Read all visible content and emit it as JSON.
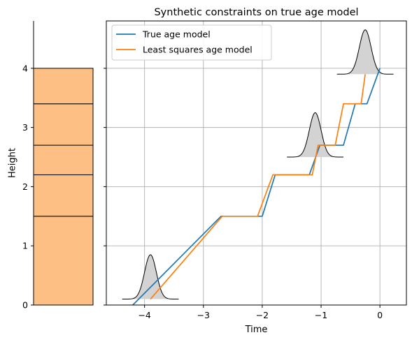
{
  "chart_data": [
    {
      "type": "bar",
      "name": "stratigraphic-column",
      "ylabel": "Height",
      "ylim": [
        0,
        4.8
      ],
      "yticks": [
        0,
        1,
        2,
        3,
        4
      ],
      "layer_boundaries": [
        0,
        1.5,
        2.2,
        2.7,
        3.4,
        4.0
      ],
      "fill_color": "#fdbf84"
    },
    {
      "type": "line",
      "title": "Synthetic constraints on true age model",
      "xlabel": "Time",
      "ylabel": "",
      "xlim": [
        -4.65,
        0.45
      ],
      "ylim": [
        0,
        4.8
      ],
      "xticks": [
        -4,
        -3,
        -2,
        -1,
        0
      ],
      "yticks": [
        0,
        1,
        2,
        3,
        4
      ],
      "grid": true,
      "legend_position": "top-left",
      "series": [
        {
          "name": "True age model",
          "color": "#1f77b4",
          "x": [
            -4.2,
            -2.7,
            -2.0,
            -1.78,
            -1.2,
            -1.02,
            -0.62,
            -0.42,
            -0.22,
            0.0
          ],
          "y": [
            0.0,
            1.5,
            1.5,
            2.2,
            2.2,
            2.7,
            2.7,
            3.4,
            3.4,
            4.0
          ]
        },
        {
          "name": "Least squares age model",
          "color": "#ff7f0e",
          "x": [
            -3.9,
            -2.68,
            -2.08,
            -1.82,
            -1.15,
            -1.05,
            -0.76,
            -0.62,
            -0.32,
            -0.25
          ],
          "y": [
            0.1,
            1.5,
            1.5,
            2.2,
            2.2,
            2.7,
            2.7,
            3.4,
            3.4,
            3.9
          ]
        }
      ],
      "constraints": [
        {
          "center": -3.9,
          "sigma": 0.1,
          "base": 0.1,
          "peak": 0.75,
          "halfwidth": 0.48
        },
        {
          "center": -1.1,
          "sigma": 0.1,
          "base": 2.5,
          "peak": 0.75,
          "halfwidth": 0.48
        },
        {
          "center": -0.25,
          "sigma": 0.1,
          "base": 3.9,
          "peak": 0.75,
          "halfwidth": 0.48
        }
      ]
    }
  ]
}
